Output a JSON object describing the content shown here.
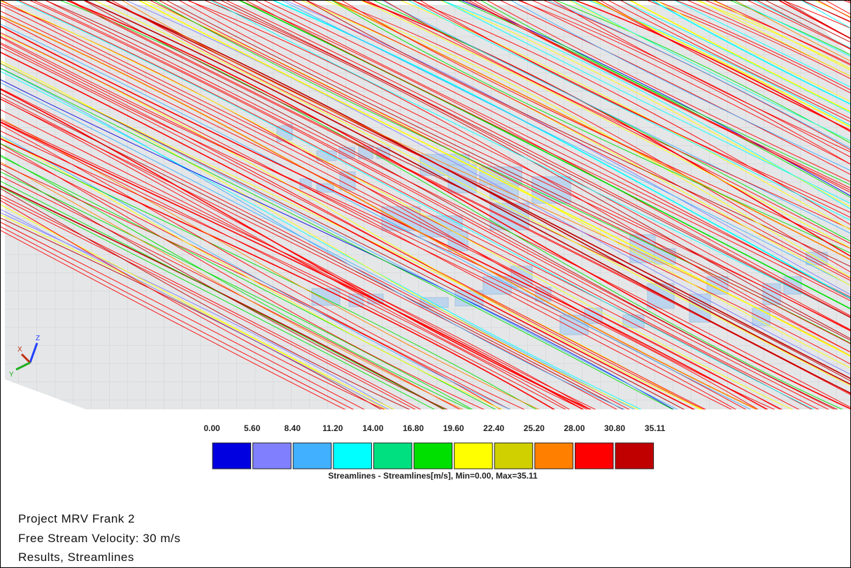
{
  "legend": {
    "labels": [
      "0.00",
      "5.60",
      "8.40",
      "11.20",
      "14.00",
      "16.80",
      "19.60",
      "22.40",
      "25.20",
      "28.00",
      "30.80",
      "35.11"
    ],
    "colors": [
      "#0000e0",
      "#8080ff",
      "#40b0ff",
      "#00ffff",
      "#00e080",
      "#00e000",
      "#ffff00",
      "#d0d000",
      "#ff8000",
      "#ff0000",
      "#c00000"
    ],
    "caption": "Streamlines  - Streamlines[m/s], Min=0.00, Max=35.11"
  },
  "axes": {
    "x": "X",
    "y": "Y",
    "z": "Z"
  },
  "info": [
    "Project MRV Frank 2",
    "Free Stream Velocity: 30 m/s",
    "Results, Streamlines"
  ]
}
